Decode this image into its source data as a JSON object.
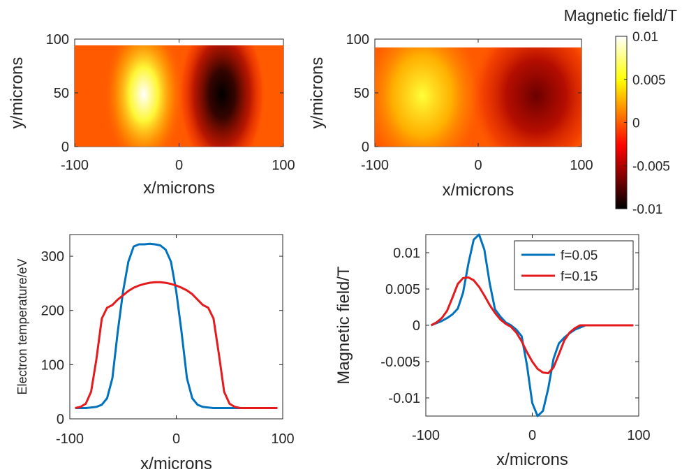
{
  "chart_data": [
    {
      "type": "heatmap",
      "panel": "top-left",
      "xlabel": "x/microns",
      "ylabel": "y/microns",
      "xlim": [
        -100,
        100
      ],
      "ylim": [
        0,
        100
      ],
      "xticks": [
        "-100",
        "0",
        "100"
      ],
      "yticks": [
        "0",
        "50",
        "100"
      ],
      "colormap": "hot",
      "field": {
        "extent_x": [
          -100,
          98
        ],
        "extent_y": [
          0,
          95
        ],
        "peaks": [
          {
            "x": -37,
            "y": 50,
            "value": 0.01
          },
          {
            "x": 38,
            "y": 50,
            "value": -0.01
          }
        ]
      }
    },
    {
      "type": "heatmap",
      "panel": "top-right",
      "xlabel": "x/microns",
      "ylabel": "y/microns",
      "xlim": [
        -100,
        100
      ],
      "ylim": [
        0,
        100
      ],
      "xticks": [
        "-100",
        "0",
        "100"
      ],
      "yticks": [
        "0",
        "50",
        "100"
      ],
      "colormap": "hot",
      "field": {
        "extent_x": [
          -100,
          98
        ],
        "extent_y": [
          0,
          95
        ],
        "peaks": [
          {
            "x": -55,
            "y": 50,
            "value": 0.0065
          },
          {
            "x": 55,
            "y": 50,
            "value": -0.0065
          }
        ]
      }
    },
    {
      "type": "colorbar",
      "title": "Magnetic field/T",
      "range": [
        -0.01,
        0.01
      ],
      "ticks": [
        "0.01",
        "0.005",
        "0",
        "-0.005",
        "-0.01"
      ],
      "tick_values": [
        0.01,
        0.005,
        0,
        -0.005,
        -0.01
      ]
    },
    {
      "type": "line",
      "panel": "bottom-left",
      "xlabel": "x/microns",
      "ylabel": "Electron temperature/eV",
      "xlim": [
        -100,
        100
      ],
      "ylim": [
        0,
        340
      ],
      "xticks": [
        "-100",
        "0",
        "100"
      ],
      "yticks": [
        "0",
        "100",
        "200",
        "300"
      ],
      "x": [
        -95,
        -90,
        -85,
        -80,
        -75,
        -70,
        -65,
        -60,
        -55,
        -50,
        -45,
        -40,
        -35,
        -30,
        -25,
        -20,
        -15,
        -10,
        -5,
        0,
        5,
        10,
        15,
        20,
        25,
        30,
        35,
        40,
        45,
        50,
        55,
        60,
        65,
        70,
        75,
        80,
        85,
        90,
        95
      ],
      "series": [
        {
          "color": "#0072BD",
          "values": [
            20,
            20,
            20,
            21,
            22,
            26,
            38,
            75,
            160,
            235,
            290,
            318,
            322,
            322,
            323,
            322,
            320,
            312,
            290,
            235,
            160,
            75,
            38,
            26,
            22,
            21,
            20,
            20,
            20,
            20,
            20,
            20,
            20,
            20,
            20,
            20,
            20,
            20,
            20
          ]
        },
        {
          "color": "#E41A1C",
          "values": [
            20,
            22,
            28,
            50,
            110,
            185,
            205,
            210,
            220,
            228,
            236,
            242,
            246,
            249,
            251,
            252,
            252,
            251,
            249,
            246,
            242,
            237,
            230,
            220,
            210,
            205,
            185,
            120,
            50,
            28,
            22,
            20,
            20,
            20,
            20,
            20,
            20,
            20,
            20
          ]
        }
      ]
    },
    {
      "type": "line",
      "panel": "bottom-right",
      "xlabel": "x/microns",
      "ylabel": "Magnetic field/T",
      "xlim": [
        -100,
        100
      ],
      "ylim": [
        -0.0125,
        0.0125
      ],
      "xticks": [
        "-100",
        "0",
        "100"
      ],
      "yticks": [
        "0.01",
        "0.005",
        "0",
        "-0.005",
        "-0.01"
      ],
      "legend": "top-right",
      "x": [
        -95,
        -90,
        -85,
        -80,
        -75,
        -70,
        -65,
        -60,
        -55,
        -50,
        -45,
        -40,
        -35,
        -30,
        -25,
        -20,
        -15,
        -10,
        -5,
        0,
        5,
        10,
        15,
        20,
        25,
        30,
        35,
        40,
        45,
        50,
        55,
        60,
        65,
        70,
        75,
        80,
        85,
        90,
        95
      ],
      "series": [
        {
          "name": "f=0.05",
          "color": "#0072BD",
          "values": [
            0.0,
            0.0003,
            0.0006,
            0.001,
            0.0015,
            0.0023,
            0.0045,
            0.0085,
            0.0118,
            0.0125,
            0.0104,
            0.0058,
            0.0022,
            0.0012,
            0.0004,
            0.0,
            -0.0006,
            -0.0015,
            -0.0055,
            -0.0107,
            -0.0125,
            -0.0118,
            -0.0087,
            -0.0046,
            -0.0025,
            -0.0017,
            -0.0011,
            -0.0006,
            -0.0003,
            0.0,
            0.0,
            0.0,
            0.0,
            0.0,
            0.0,
            0.0,
            0.0,
            0.0,
            0.0
          ]
        },
        {
          "name": "f=0.15",
          "color": "#E41A1C",
          "values": [
            0.0,
            0.0004,
            0.001,
            0.002,
            0.0038,
            0.0057,
            0.0065,
            0.0066,
            0.0062,
            0.0053,
            0.0041,
            0.0028,
            0.0017,
            0.0008,
            0.0002,
            -0.0002,
            -0.001,
            -0.0022,
            -0.0037,
            -0.005,
            -0.006,
            -0.0065,
            -0.0066,
            -0.0058,
            -0.004,
            -0.0021,
            -0.001,
            -0.0004,
            0.0,
            0.0,
            0.0,
            0.0,
            0.0,
            0.0,
            0.0,
            0.0,
            0.0,
            0.0,
            0.0
          ]
        }
      ]
    }
  ]
}
